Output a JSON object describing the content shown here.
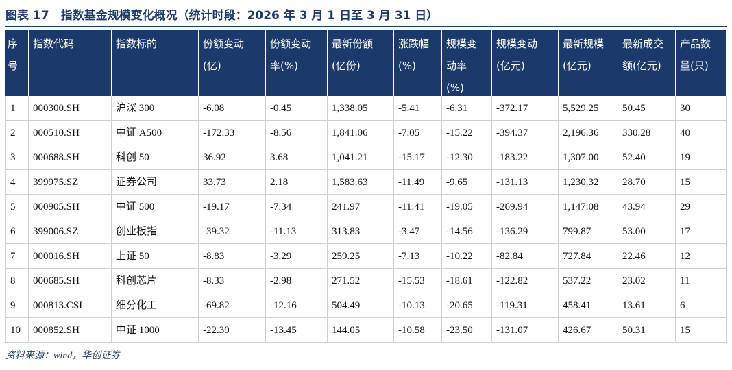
{
  "title": "图表 17　指数基金规模变化概况（统计时段：2026 年 3 月 1 日至 3 月 31 日）",
  "table": {
    "header": [
      [
        "序",
        "号"
      ],
      [
        "指数代码"
      ],
      [
        "指数标的"
      ],
      [
        "份额变动",
        "(亿)"
      ],
      [
        "份额变动",
        "率(%)"
      ],
      [
        "最新份额",
        "(亿份)"
      ],
      [
        "涨跌幅",
        "(%)"
      ],
      [
        "规模变",
        "动率",
        "(%)"
      ],
      [
        "规模变动",
        "(亿元)"
      ],
      [
        "最新规模",
        "(亿元)"
      ],
      [
        "最新成交",
        "额(亿元)"
      ],
      [
        "产品数",
        "量(只)"
      ]
    ],
    "rows": [
      [
        "1",
        "000300.SH",
        "沪深 300",
        "-6.08",
        "-0.45",
        "1,338.05",
        "-5.41",
        "-6.31",
        "-372.17",
        "5,529.25",
        "50.45",
        "30"
      ],
      [
        "2",
        "000510.SH",
        "中证 A500",
        "-172.33",
        "-8.56",
        "1,841.06",
        "-7.05",
        "-15.22",
        "-394.37",
        "2,196.36",
        "330.28",
        "40"
      ],
      [
        "3",
        "000688.SH",
        "科创 50",
        "36.92",
        "3.68",
        "1,041.21",
        "-15.17",
        "-12.30",
        "-183.22",
        "1,307.00",
        "52.40",
        "19"
      ],
      [
        "4",
        "399975.SZ",
        "证券公司",
        "33.73",
        "2.18",
        "1,583.63",
        "-11.49",
        "-9.65",
        "-131.13",
        "1,230.32",
        "28.70",
        "15"
      ],
      [
        "5",
        "000905.SH",
        "中证 500",
        "-19.17",
        "-7.34",
        "241.97",
        "-11.41",
        "-19.05",
        "-269.94",
        "1,147.08",
        "43.94",
        "29"
      ],
      [
        "6",
        "399006.SZ",
        "创业板指",
        "-39.32",
        "-11.13",
        "313.83",
        "-3.47",
        "-14.56",
        "-136.29",
        "799.87",
        "53.00",
        "17"
      ],
      [
        "7",
        "000016.SH",
        "上证 50",
        "-8.83",
        "-3.29",
        "259.25",
        "-7.13",
        "-10.22",
        "-82.84",
        "727.84",
        "22.46",
        "12"
      ],
      [
        "8",
        "000685.SH",
        "科创芯片",
        "-8.33",
        "-2.98",
        "271.52",
        "-15.53",
        "-18.61",
        "-122.82",
        "537.22",
        "23.02",
        "11"
      ],
      [
        "9",
        "000813.CSI",
        "细分化工",
        "-69.82",
        "-12.16",
        "504.49",
        "-10.13",
        "-20.65",
        "-119.31",
        "458.41",
        "13.61",
        "6"
      ],
      [
        "10",
        "000852.SH",
        "中证 1000",
        "-22.39",
        "-13.45",
        "144.05",
        "-10.58",
        "-23.50",
        "-131.07",
        "426.67",
        "50.31",
        "15"
      ]
    ]
  },
  "source": "资料来源：wind，华创证券"
}
